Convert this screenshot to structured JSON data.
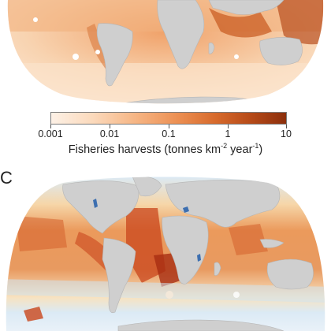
{
  "colorbar": {
    "ticks": [
      "0.001",
      "0.01",
      "0.1",
      "1",
      "10"
    ],
    "title_main": "Fisheries harvests (tonnes km",
    "title_sup1": "-2",
    "title_mid": " year",
    "title_sup2": "-1",
    "title_end": ")"
  },
  "panel_label": "C",
  "colors": {
    "land": "#cfcfcf",
    "ocean_low": "#fdf1e6",
    "ocean_high": "#8c2f0c",
    "ocean_cool": "#dbeaf5",
    "ocean_warm": "#e9a062",
    "lakes": "#3d6fb0"
  },
  "maps": [
    {
      "name": "fisheries-harvest-map",
      "variable": "fisheries-harvests"
    },
    {
      "name": "panel-c-map",
      "variable": "panel-c"
    }
  ]
}
